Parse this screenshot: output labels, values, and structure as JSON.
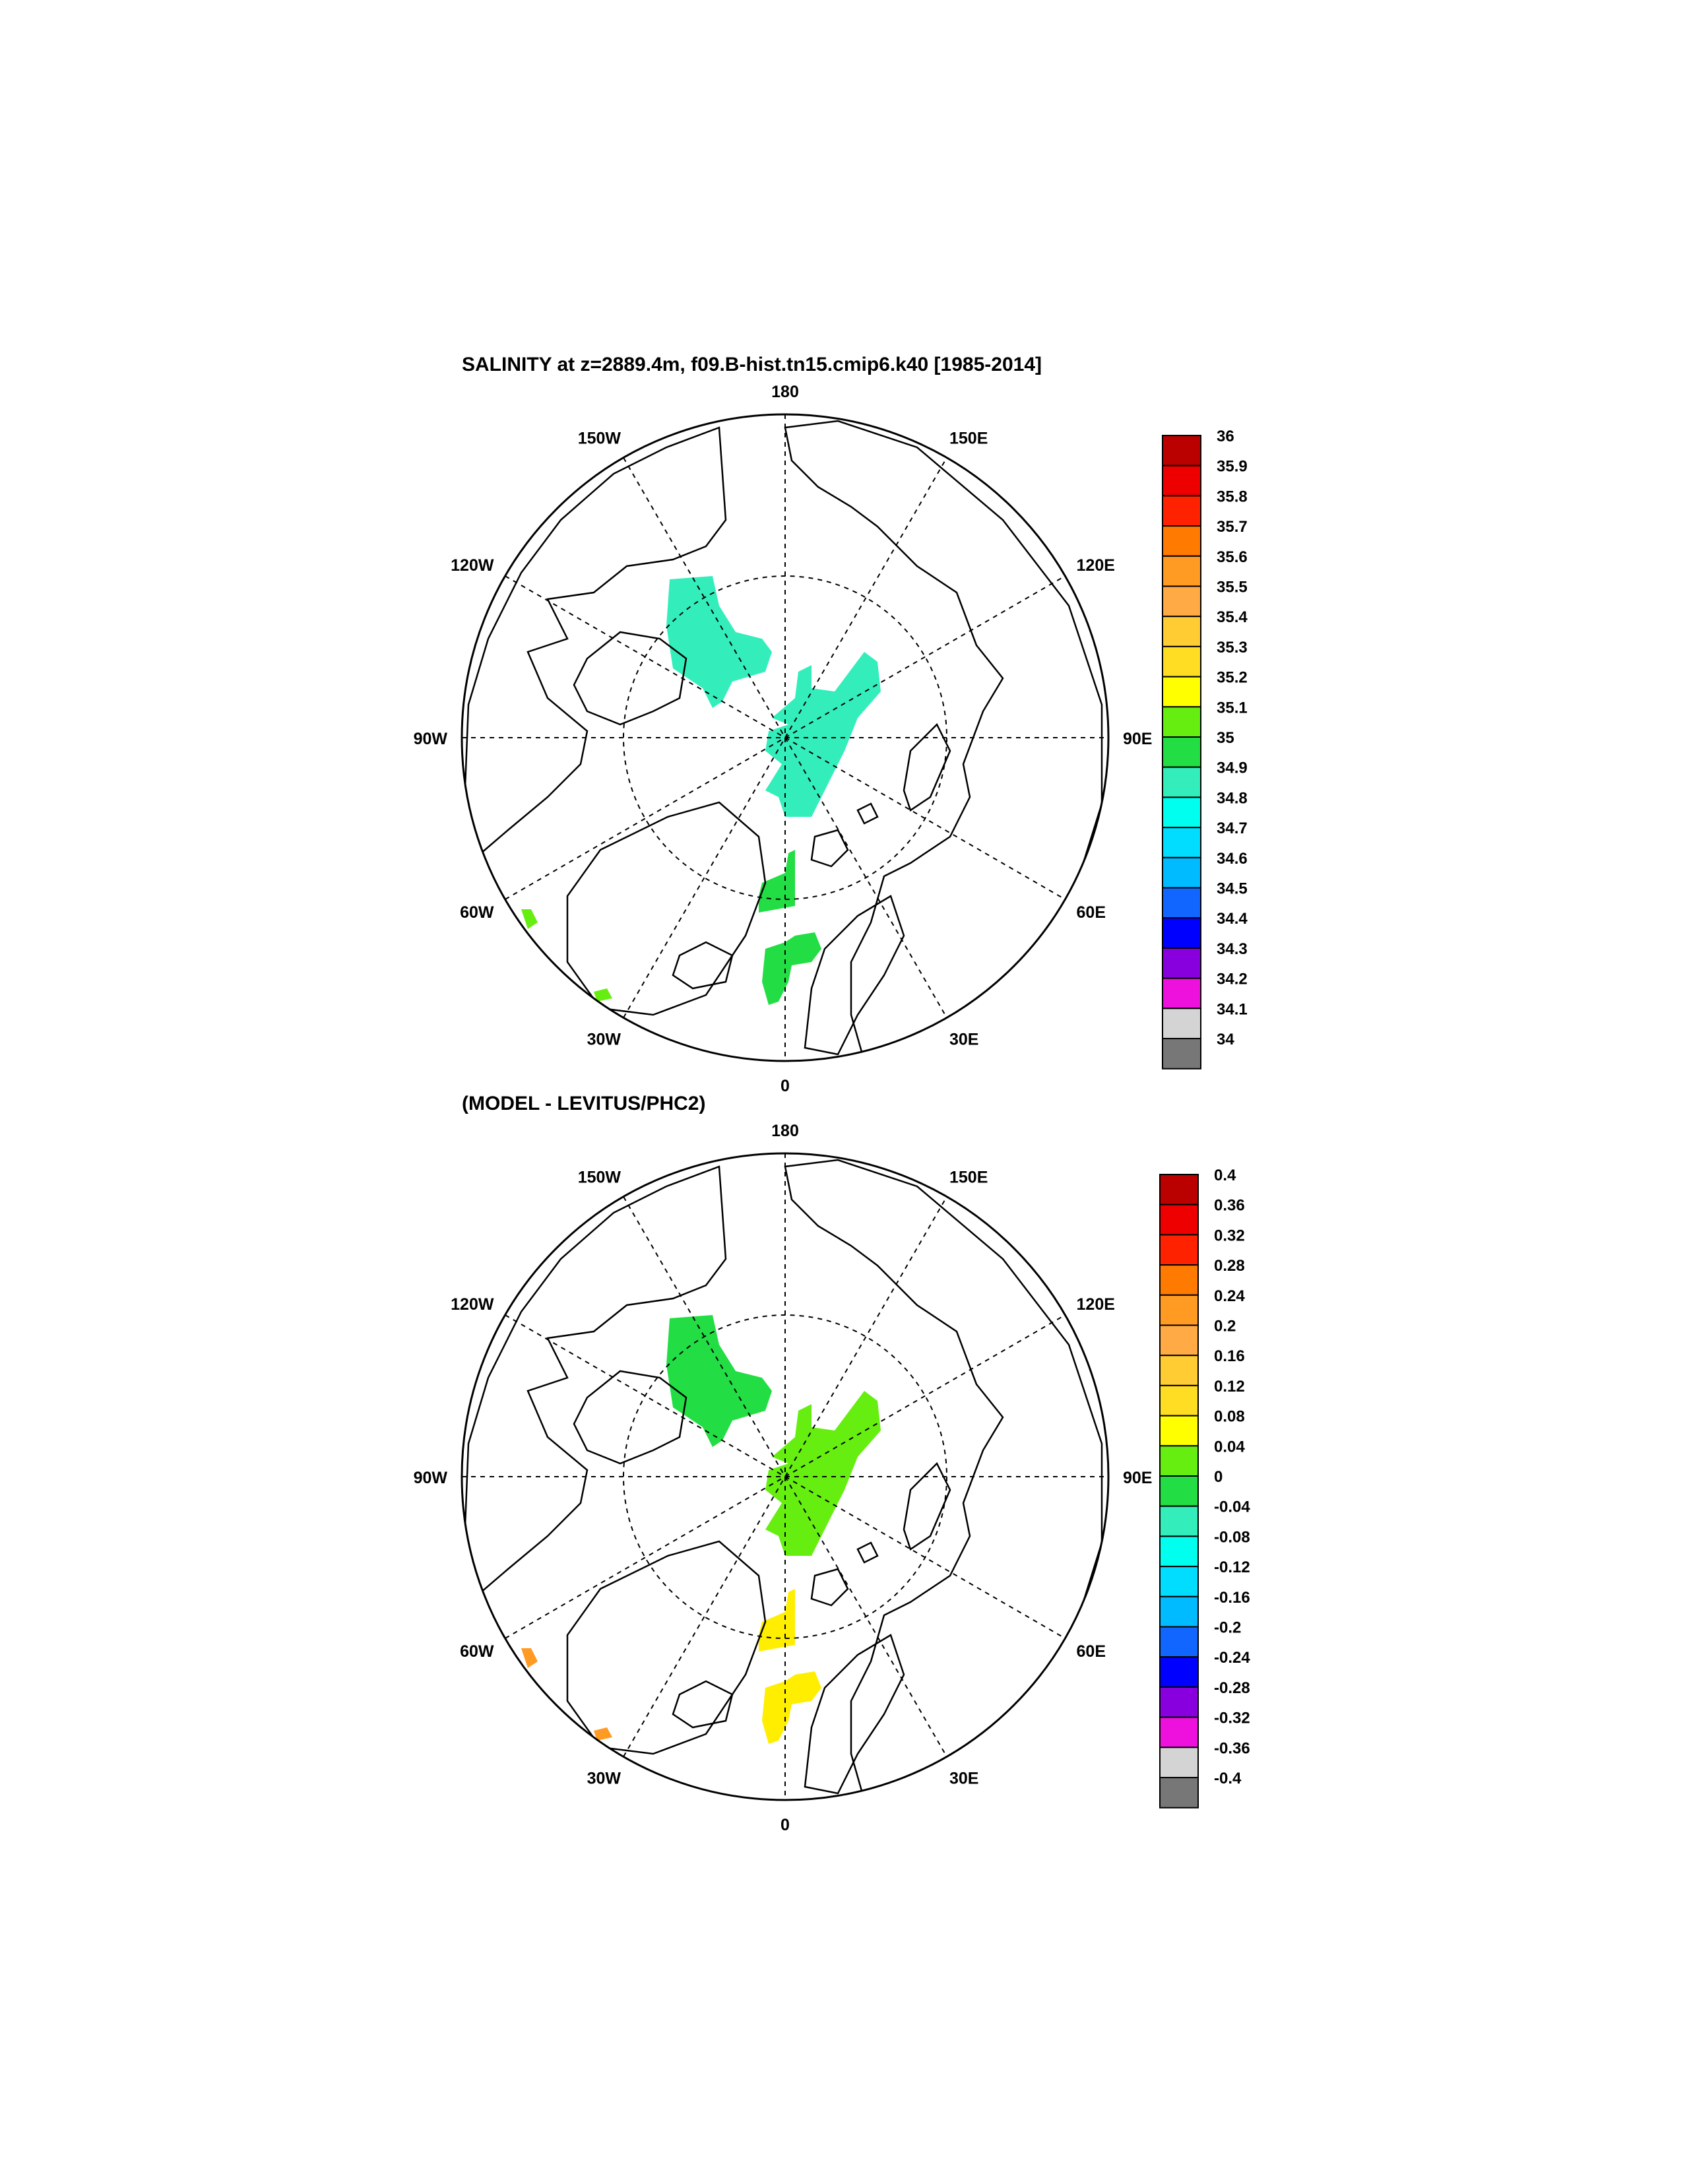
{
  "panels": [
    {
      "title": "SALINITY at z=2889.4m, f09.B-hist.tn15.cmip6.k40 [1985-2014]",
      "lon_labels": [
        "180",
        "150E",
        "120E",
        "90E",
        "60E",
        "30E",
        "0",
        "30W",
        "60W",
        "90W",
        "120W",
        "150W"
      ],
      "colorbar_labels": [
        "36",
        "35.9",
        "35.8",
        "35.7",
        "35.6",
        "35.5",
        "35.4",
        "35.3",
        "35.2",
        "35.1",
        "35",
        "34.9",
        "34.8",
        "34.7",
        "34.6",
        "34.5",
        "34.4",
        "34.3",
        "34.2",
        "34.1",
        "34"
      ],
      "colorbar_colors": [
        "#bb0000",
        "#ee0000",
        "#ff2200",
        "#ff7a00",
        "#ff9a22",
        "#ffaa44",
        "#ffcc33",
        "#ffdd22",
        "#ffff00",
        "#66ee11",
        "#22dd44",
        "#33eebb",
        "#00ffee",
        "#00ddff",
        "#00bbff",
        "#1166ff",
        "#0000ff",
        "#8800dd",
        "#ee11dd",
        "#d4d4d4",
        "#777777"
      ],
      "field_colors": {
        "central_arctic": "#33eebb",
        "nordic_seas": "#22dd44",
        "subpolar": "#66ee11"
      }
    },
    {
      "title": "(MODEL - LEVITUS/PHC2)",
      "lon_labels": [
        "180",
        "150E",
        "120E",
        "90E",
        "60E",
        "30E",
        "0",
        "30W",
        "60W",
        "90W",
        "120W",
        "150W"
      ],
      "colorbar_labels": [
        "0.4",
        "0.36",
        "0.32",
        "0.28",
        "0.24",
        "0.2",
        "0.16",
        "0.12",
        "0.08",
        "0.04",
        "0",
        "-0.04",
        "-0.08",
        "-0.12",
        "-0.16",
        "-0.2",
        "-0.24",
        "-0.28",
        "-0.32",
        "-0.36",
        "-0.4"
      ],
      "colorbar_colors": [
        "#bb0000",
        "#ee0000",
        "#ff2200",
        "#ff7a00",
        "#ff9a22",
        "#ffaa44",
        "#ffcc33",
        "#ffdd22",
        "#ffff00",
        "#66ee11",
        "#22dd44",
        "#33eebb",
        "#00ffee",
        "#00ddff",
        "#00bbff",
        "#1166ff",
        "#0000ff",
        "#8800dd",
        "#ee11dd",
        "#d4d4d4",
        "#777777"
      ],
      "field_colors": {
        "central_arctic": "#66ee11",
        "canada_basin": "#22dd44",
        "nordic_seas": "#ffee00",
        "subpolar": "#ff9a22"
      }
    }
  ]
}
